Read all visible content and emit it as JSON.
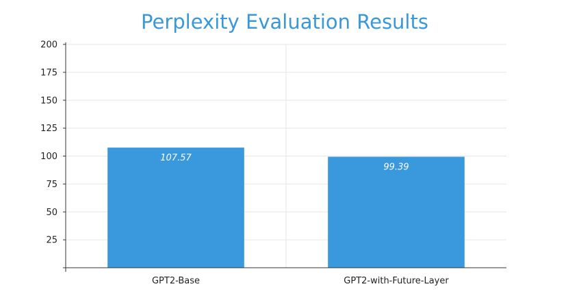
{
  "chart_data": {
    "type": "bar",
    "title": "Perplexity Evaluation Results",
    "xlabel": "",
    "ylabel": "",
    "categories": [
      "GPT2-Base",
      "GPT2-with-Future-Layer"
    ],
    "values": [
      107.57,
      99.39
    ],
    "value_labels": [
      "107.57",
      "99.39"
    ],
    "ylim": [
      0,
      200
    ],
    "yticks": [
      25,
      50,
      75,
      100,
      125,
      150,
      175,
      200
    ],
    "grid": true,
    "legend": "none",
    "bar_color": "#3a98dc",
    "title_color": "#3a98d9"
  }
}
